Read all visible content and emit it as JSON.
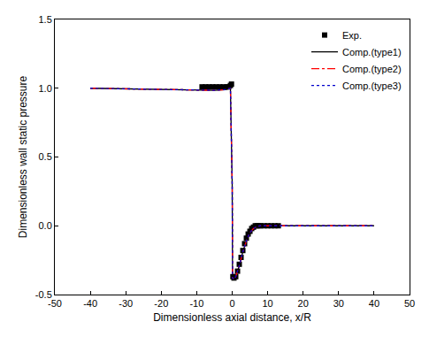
{
  "chart_data": {
    "type": "line",
    "x_label": "Dimensionless axial distance, x/R",
    "y_label": "Dimensionless wall static pressure",
    "xlim": [
      -50,
      50
    ],
    "xticks": [
      -50,
      -40,
      -30,
      -20,
      -10,
      0,
      10,
      20,
      30,
      40,
      50
    ],
    "ylim": [
      -0.5,
      1.5
    ],
    "yticks": [
      -0.5,
      {
        "value": 0,
        "label": "0.0"
      },
      0.5,
      {
        "value": 1,
        "label": "1.0"
      },
      1.5
    ],
    "grid": false,
    "legend": "upper right",
    "series": [
      {
        "name": "Exp.",
        "type": "scatter",
        "marker": "square",
        "color": "#000000",
        "x": [
          -8.5,
          -7.5,
          -6.5,
          -5.5,
          -4.5,
          -3.5,
          -2.5,
          -1.5,
          -1,
          -0.5,
          -0.2,
          0.2,
          0.5,
          1,
          1.5,
          2,
          2.5,
          3,
          3.5,
          4,
          4.5,
          5,
          5.5,
          6,
          6.5,
          7,
          7.5,
          8,
          9,
          10,
          11,
          12,
          13
        ],
        "values": [
          1.01,
          1.01,
          1.01,
          1.01,
          1.01,
          1.01,
          1.01,
          1.01,
          1.01,
          1.02,
          1.03,
          -0.37,
          -0.38,
          -0.37,
          -0.33,
          -0.28,
          -0.23,
          -0.18,
          -0.13,
          -0.09,
          -0.06,
          -0.04,
          -0.02,
          -0.01,
          0.0,
          0.0,
          0.0,
          0.0,
          0.0,
          0.0,
          0.0,
          0.0,
          0.0
        ]
      },
      {
        "name": "Comp.(type1)",
        "type": "line",
        "line_style": "solid",
        "color": "#000000",
        "x": [
          -40,
          -30,
          -20,
          -10,
          -5,
          -2,
          -0.5,
          0,
          0.1,
          0.5,
          1,
          2,
          3,
          4,
          5,
          6,
          7,
          8,
          10,
          20,
          30,
          40
        ],
        "values": [
          1.0,
          0.995,
          0.99,
          0.985,
          0.985,
          0.99,
          1.0,
          0.3,
          -0.38,
          -0.39,
          -0.37,
          -0.29,
          -0.19,
          -0.11,
          -0.05,
          -0.02,
          -0.005,
          0.0,
          0.0,
          0.0,
          0.0,
          0.0
        ]
      },
      {
        "name": "Comp.(type2)",
        "type": "line",
        "line_style": "dashdot",
        "color": "#ff0000",
        "x": [
          -40,
          -30,
          -20,
          -10,
          -5,
          -2,
          -0.5,
          0,
          0.1,
          0.5,
          1,
          2,
          3,
          4,
          5,
          6,
          7,
          8,
          10,
          20,
          30,
          40
        ],
        "values": [
          1.0,
          0.995,
          0.99,
          0.985,
          0.985,
          0.99,
          1.0,
          0.3,
          -0.38,
          -0.39,
          -0.37,
          -0.29,
          -0.19,
          -0.11,
          -0.05,
          -0.02,
          -0.005,
          0.0,
          0.0,
          0.0,
          0.0,
          0.0
        ]
      },
      {
        "name": "Comp.(type3)",
        "type": "line",
        "line_style": "dot",
        "color": "#0000cc",
        "x": [
          -40,
          -30,
          -20,
          -10,
          -5,
          -2,
          -0.5,
          0,
          0.1,
          0.5,
          1,
          2,
          3,
          4,
          5,
          6,
          7,
          8,
          10,
          20,
          30,
          40
        ],
        "values": [
          1.0,
          0.995,
          0.99,
          0.985,
          0.985,
          0.99,
          1.0,
          0.3,
          -0.38,
          -0.39,
          -0.37,
          -0.29,
          -0.19,
          -0.11,
          -0.05,
          -0.02,
          -0.005,
          0.0,
          0.0,
          0.0,
          0.0,
          0.0
        ]
      }
    ]
  }
}
